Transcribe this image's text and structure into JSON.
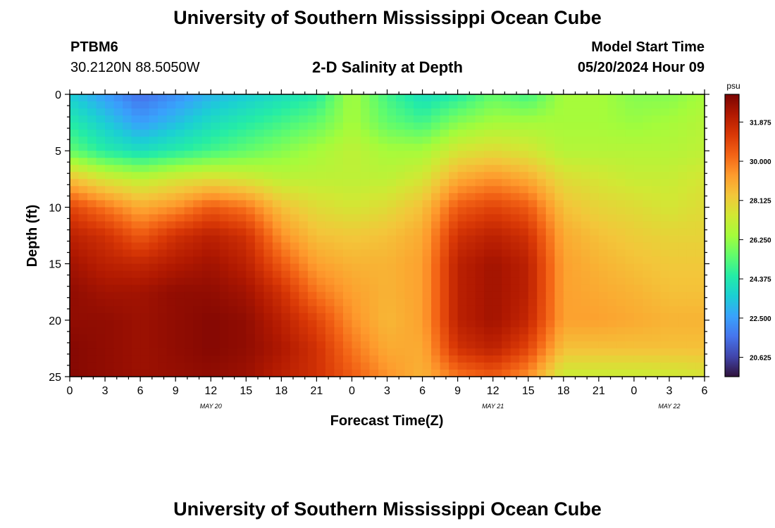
{
  "page": {
    "top_title": "University of Southern Mississippi Ocean Cube",
    "bottom_title": "University of Southern Mississippi Ocean Cube",
    "station_id": "PTBM6",
    "coordinates": "30.2120N  88.5050W",
    "subtitle": "2-D Salinity at Depth",
    "model_start_label": "Model Start Time",
    "model_start_value": "05/20/2024 Hour 09"
  },
  "colors": {
    "colormap": [
      "#30123b",
      "#4145ab",
      "#4675ed",
      "#39a2fc",
      "#1bcfd4",
      "#24eca6",
      "#61fc6c",
      "#a4fc3b",
      "#d1e834",
      "#f3c63a",
      "#fe9b2d",
      "#f36315",
      "#d93806",
      "#b11901",
      "#7a0403"
    ],
    "frame": "#000000",
    "background": "#ffffff"
  },
  "chart_data": {
    "type": "heatmap",
    "title": "2-D Salinity at Depth",
    "xlabel": "Forecast Time(Z)",
    "ylabel": "Depth (ft)",
    "x_ticks": [
      "0",
      "3",
      "6",
      "9",
      "12",
      "15",
      "18",
      "21",
      "0",
      "3",
      "6",
      "9",
      "12",
      "15",
      "18",
      "21",
      "0",
      "3",
      "6"
    ],
    "date_labels": [
      {
        "text": "MAY 20",
        "at_hour": 12
      },
      {
        "text": "MAY 21",
        "at_hour": 36
      },
      {
        "text": "MAY 22",
        "at_hour": 51
      }
    ],
    "x_range_hours": [
      0,
      54
    ],
    "y_ticks": [
      0,
      5,
      10,
      15,
      20,
      25
    ],
    "ylim": [
      0,
      25
    ],
    "y_inverted": true,
    "colorbar": {
      "unit": "psu",
      "range": [
        19.7,
        33.2
      ],
      "tick_labels": [
        "31.875",
        "30.000",
        "28.125",
        "26.250",
        "24.375",
        "22.500",
        "20.625"
      ]
    },
    "depths_ft": [
      0,
      2.5,
      5,
      7.5,
      10,
      12.5,
      15,
      17.5,
      20,
      22.5,
      25
    ],
    "times_h": [
      0,
      3,
      6,
      9,
      12,
      15,
      18,
      21,
      24,
      27,
      30,
      33,
      36,
      39,
      42,
      45,
      48,
      51,
      54
    ],
    "salinity_psu": [
      [
        23.5,
        22.5,
        21.5,
        22.2,
        23.0,
        23.5,
        24.0,
        24.5,
        26.5,
        25.0,
        24.0,
        24.5,
        25.5,
        25.0,
        26.5,
        26.5,
        26.0,
        26.0,
        26.5
      ],
      [
        24.5,
        23.5,
        22.5,
        23.2,
        24.0,
        24.5,
        25.0,
        25.5,
        26.5,
        25.5,
        25.0,
        26.0,
        26.5,
        26.5,
        26.5,
        26.5,
        26.3,
        26.5,
        26.8
      ],
      [
        25.5,
        24.5,
        24.0,
        24.5,
        25.0,
        25.5,
        26.0,
        26.5,
        27.0,
        26.5,
        26.5,
        27.5,
        27.8,
        27.5,
        26.8,
        26.8,
        26.8,
        26.8,
        27.0
      ],
      [
        28.5,
        27.5,
        27.0,
        27.5,
        27.8,
        27.5,
        27.0,
        27.0,
        27.0,
        27.0,
        27.5,
        29.0,
        29.5,
        29.0,
        27.8,
        27.5,
        27.2,
        27.2,
        27.5
      ],
      [
        31.0,
        30.0,
        29.0,
        29.5,
        30.5,
        30.0,
        28.5,
        27.8,
        27.5,
        27.8,
        28.5,
        30.5,
        31.0,
        30.5,
        28.5,
        28.0,
        27.8,
        27.5,
        27.8
      ],
      [
        32.0,
        31.5,
        30.5,
        31.5,
        32.0,
        31.5,
        29.5,
        28.5,
        28.3,
        28.5,
        29.0,
        31.5,
        32.0,
        31.5,
        29.0,
        28.5,
        28.2,
        28.0,
        28.0
      ],
      [
        32.5,
        32.0,
        31.8,
        32.2,
        32.5,
        32.0,
        30.5,
        29.2,
        28.8,
        28.8,
        29.2,
        32.0,
        32.5,
        32.0,
        29.2,
        28.8,
        28.5,
        28.3,
        28.3
      ],
      [
        32.8,
        32.5,
        32.5,
        32.8,
        32.8,
        32.5,
        31.5,
        30.0,
        29.2,
        28.8,
        29.2,
        32.0,
        32.5,
        32.0,
        29.2,
        29.0,
        28.8,
        28.5,
        28.5
      ],
      [
        32.8,
        32.8,
        32.6,
        32.8,
        33.0,
        32.8,
        32.0,
        31.0,
        29.5,
        28.7,
        29.2,
        32.0,
        32.5,
        31.8,
        29.2,
        29.2,
        29.0,
        28.8,
        28.8
      ],
      [
        33.0,
        32.8,
        32.6,
        32.8,
        33.0,
        32.8,
        32.3,
        31.5,
        30.0,
        29.0,
        29.0,
        31.5,
        32.0,
        31.0,
        28.5,
        28.5,
        28.5,
        28.5,
        28.5
      ],
      [
        33.0,
        32.8,
        32.6,
        32.7,
        32.8,
        32.6,
        32.0,
        31.5,
        30.5,
        29.5,
        28.8,
        30.0,
        30.5,
        29.5,
        27.2,
        27.2,
        27.2,
        27.3,
        27.5
      ]
    ]
  }
}
